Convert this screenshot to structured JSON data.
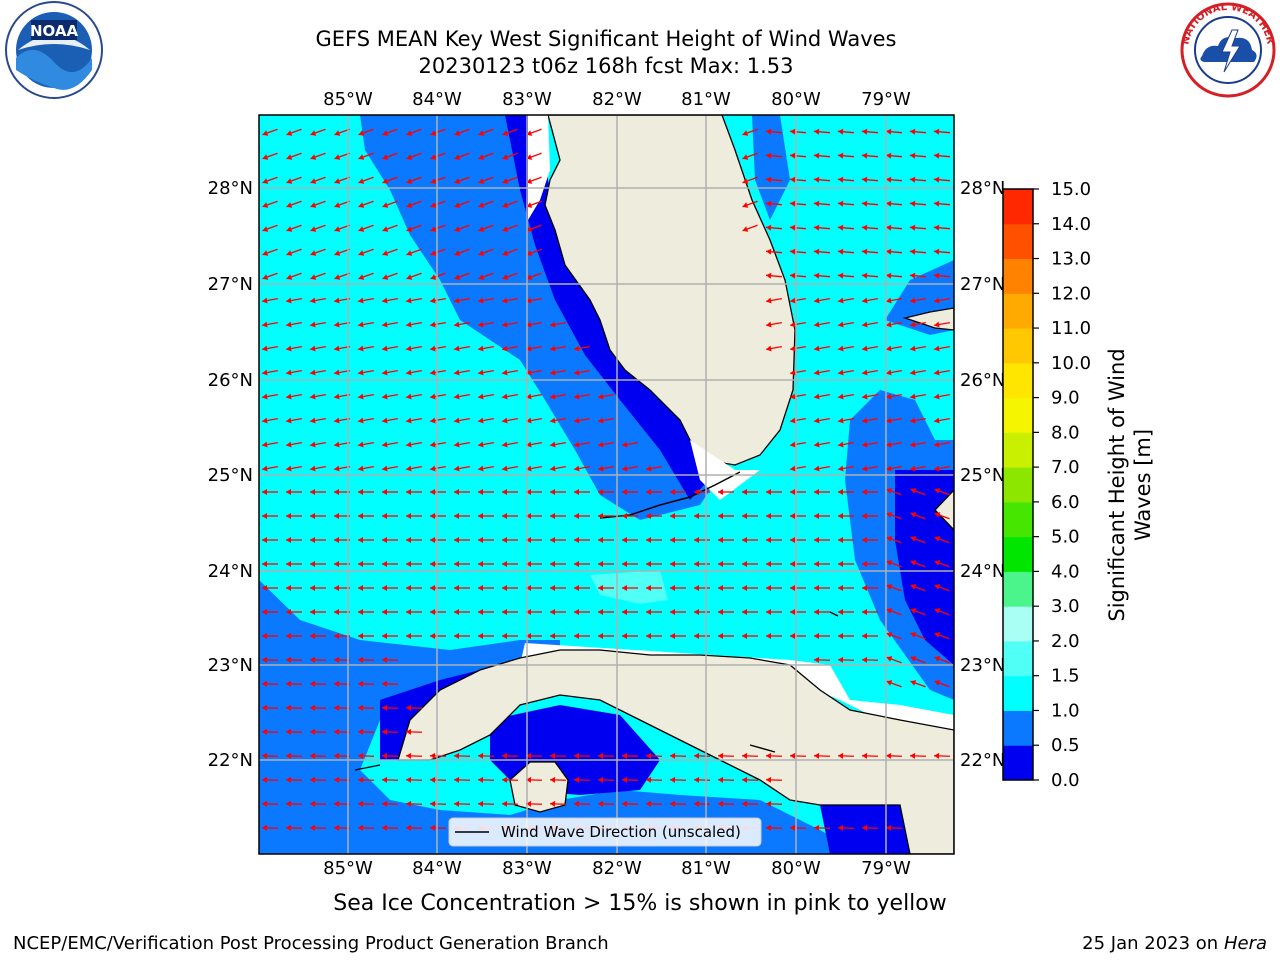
{
  "header": {
    "title_line1": "GEFS MEAN Key West Significant Height of Wind Waves",
    "title_line2": "20230123 t06z 168h fcst   Max: 1.53"
  },
  "map": {
    "lon_labels": [
      "85°W",
      "84°W",
      "83°W",
      "82°W",
      "81°W",
      "80°W",
      "79°W"
    ],
    "lat_labels": [
      "28°N",
      "27°N",
      "26°N",
      "25°N",
      "24°N",
      "23°N",
      "22°N"
    ],
    "legend_label": "Wind Wave Direction (unscaled)",
    "arrow_color": "#ff0000",
    "land_color": "#eeecdc"
  },
  "colorbar": {
    "title": "Significant Height of Wind Waves [m]",
    "title_line1": "Significant Height of Wind",
    "title_line2": "Waves [m]",
    "ticks": [
      "0.0",
      "0.5",
      "1.0",
      "1.5",
      "2.0",
      "3.0",
      "4.0",
      "5.0",
      "6.0",
      "7.0",
      "8.0",
      "9.0",
      "10.0",
      "11.0",
      "12.0",
      "13.0",
      "14.0",
      "15.0"
    ],
    "colors": [
      "#0000f0",
      "#0a78ff",
      "#00ffff",
      "#50fff5",
      "#aafff5",
      "#4cf58c",
      "#00e600",
      "#46e600",
      "#8ce600",
      "#c8f000",
      "#f5f500",
      "#ffe600",
      "#ffc800",
      "#ffaa00",
      "#ff8200",
      "#ff5000",
      "#ff2800",
      "#f50000"
    ]
  },
  "subnote": "Sea Ice Concentration > 15% is shown in pink to yellow",
  "footer": {
    "left": "NCEP/EMC/Verification Post Processing Product Generation Branch",
    "right_date": "25 Jan 2023 on ",
    "right_host": "Hera"
  },
  "logos": {
    "noaa": "NOAA",
    "nws_ring": "NATIONAL WEATHER SERVICE"
  }
}
